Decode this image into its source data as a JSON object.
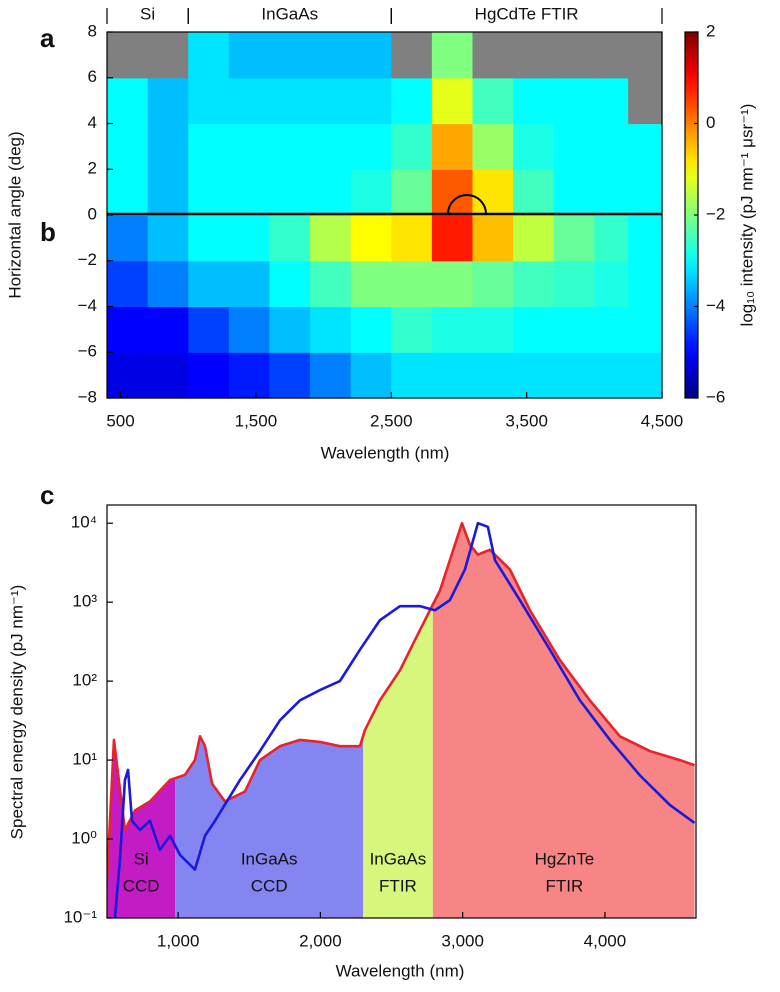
{
  "chart_data": [
    {
      "type": "heatmap",
      "panel_labels": [
        "a",
        "b"
      ],
      "xlabel": "Wavelength (nm)",
      "ylabel": "Horizontal angle (deg)",
      "xlim": [
        400,
        4500
      ],
      "ylim": [
        -8,
        8
      ],
      "xticks": [
        500,
        {
          "value": 1500,
          "label": "1,500"
        },
        {
          "value": 2500,
          "label": "2,500"
        },
        {
          "value": 3500,
          "label": "3,500"
        },
        {
          "value": 4500,
          "label": "4,500"
        }
      ],
      "yticks": [
        {
          "value": -8,
          "label": "−8"
        },
        {
          "value": -6,
          "label": "−6"
        },
        {
          "value": -4,
          "label": "−4"
        },
        {
          "value": -2,
          "label": "−2"
        },
        0,
        2,
        4,
        6,
        8
      ],
      "xbins": [
        400,
        700,
        1000,
        1300,
        1600,
        1900,
        2200,
        2500,
        2800,
        3100,
        3400,
        3700,
        4000,
        4250,
        4500
      ],
      "ybins": [
        -8,
        -6,
        -4,
        -2,
        0,
        2,
        4,
        6,
        8
      ],
      "z": [
        [
          -5.2,
          -5.2,
          -5,
          -4.8,
          -4.5,
          -4,
          -3.5,
          -3.2,
          -3.2,
          -3.2,
          -3.2,
          -3.2,
          -3.2,
          -3.2
        ],
        [
          -5,
          -5,
          -4.5,
          -4,
          -3.5,
          -3.2,
          -3,
          -2.6,
          -2.8,
          -2.8,
          -3,
          -3,
          -3,
          -3
        ],
        [
          -4.5,
          -4,
          -3.5,
          -3.5,
          -3,
          -2.5,
          -2,
          -2,
          -2,
          -2.2,
          -2.5,
          -2.6,
          -2.8,
          -3
        ],
        [
          -4,
          -3.5,
          -3,
          -3,
          -2.6,
          -1.6,
          -1,
          -0.8,
          0.8,
          -0.5,
          -1.5,
          -2.2,
          -2.6,
          -3
        ],
        [
          -3,
          -3.5,
          -3,
          -3,
          -3,
          -3,
          -2.8,
          -2.2,
          0.3,
          -0.8,
          -2.5,
          -3,
          -3,
          -3
        ],
        [
          -3,
          -3.5,
          -3,
          -3,
          -3,
          -3,
          -3,
          -2.6,
          -0.3,
          -1.8,
          -2.8,
          -3,
          -3,
          -3
        ],
        [
          -3,
          -3.5,
          -3.2,
          -3.2,
          -3.2,
          -3.2,
          -3.2,
          -3,
          -1.2,
          -2.5,
          -3,
          -3,
          -3,
          null
        ],
        [
          null,
          null,
          -3.2,
          -3.5,
          -3.5,
          -3.5,
          -3.5,
          null,
          -2,
          null,
          null,
          null,
          null,
          null
        ]
      ],
      "colormap": "jet",
      "missing_color": "#808080",
      "clim": [
        -6,
        2
      ],
      "cticks": [
        {
          "value": -6,
          "label": "−6"
        },
        {
          "value": -4,
          "label": "−4"
        },
        {
          "value": -2,
          "label": "−2"
        },
        0,
        2
      ],
      "colorbar_label": "log₁₀ intensity (pJ nm⁻¹ μsr⁻¹)",
      "regions": [
        {
          "label": "Si",
          "start": 400,
          "end": 1000
        },
        {
          "label": "InGaAs",
          "start": 1000,
          "end": 2500
        },
        {
          "label": "HgCdTe FTIR",
          "start": 2500,
          "end": 4500
        }
      ]
    },
    {
      "type": "line",
      "panel_label": "c",
      "xlabel": "Wavelength (nm)",
      "ylabel": "Spectral energy density (pJ nm⁻¹)",
      "xlim": [
        500,
        4640
      ],
      "ylim": [
        0.1,
        17000
      ],
      "yscale": "log",
      "xticks": [
        {
          "value": 1000,
          "label": "1,000"
        },
        {
          "value": 2000,
          "label": "2,000"
        },
        {
          "value": 3000,
          "label": "3,000"
        },
        {
          "value": 4000,
          "label": "4,000"
        }
      ],
      "yticks": [
        {
          "value": 0.1,
          "label": "10⁻¹"
        },
        {
          "value": 1,
          "label": "10⁰"
        },
        {
          "value": 10,
          "label": "10¹"
        },
        {
          "value": 100,
          "label": "10²"
        },
        {
          "value": 1000,
          "label": "10³"
        },
        {
          "value": 10000,
          "label": "10⁴"
        }
      ],
      "series": [
        {
          "color": "#e8232a",
          "fill": true,
          "x": [
            500,
            549,
            626,
            697,
            802,
            943,
            1048,
            1118,
            1154,
            1189,
            1239,
            1329,
            1470,
            1575,
            1716,
            1856,
            1997,
            2137,
            2278,
            2313,
            2418,
            2559,
            2664,
            2770,
            2840,
            2910,
            2995,
            3051,
            3107,
            3191,
            3332,
            3473,
            3683,
            3894,
            4105,
            4316,
            4527,
            4630
          ],
          "values": [
            0.3,
            18,
            1.3,
            2.3,
            3,
            5.6,
            6.5,
            10,
            20,
            15,
            5,
            3,
            4,
            10,
            15,
            18,
            17,
            15,
            15,
            24,
            57,
            137,
            330,
            790,
            1400,
            3400,
            10000,
            5300,
            4000,
            4600,
            2600,
            790,
            185,
            57,
            20,
            13,
            10,
            8.6
          ]
        },
        {
          "color": "#1a1adb",
          "fill": false,
          "x": [
            556,
            591,
            626,
            648,
            676,
            732,
            802,
            872,
            943,
            1013,
            1118,
            1189,
            1259,
            1435,
            1575,
            1716,
            1856,
            1997,
            2137,
            2278,
            2418,
            2559,
            2699,
            2805,
            2910,
            3016,
            3107,
            3177,
            3227,
            3402,
            3613,
            3824,
            4035,
            4246,
            4456,
            4630
          ],
          "values": [
            0.1,
            0.54,
            5.6,
            7.5,
            1.7,
            1.3,
            1.7,
            0.73,
            1.1,
            0.63,
            0.41,
            1.1,
            1.7,
            5.6,
            13,
            32,
            57,
            77,
            100,
            250,
            590,
            890,
            890,
            790,
            1060,
            2600,
            10000,
            9000,
            3400,
            1060,
            250,
            57,
            18,
            6.4,
            2.7,
            1.6
          ]
        }
      ],
      "regions": [
        {
          "label": [
            "Si",
            "CCD"
          ],
          "start": 500,
          "end": 980,
          "color": "#c41cc4"
        },
        {
          "label": [
            "InGaAs",
            "CCD"
          ],
          "start": 980,
          "end": 2300,
          "color": "#8585f2"
        },
        {
          "label": [
            "InGaAs",
            "FTIR"
          ],
          "start": 2300,
          "end": 2790,
          "color": "#d6f77c"
        },
        {
          "label": [
            "HgZnTe",
            "FTIR"
          ],
          "start": 2790,
          "end": 4640,
          "color": "#f78585"
        }
      ]
    }
  ]
}
